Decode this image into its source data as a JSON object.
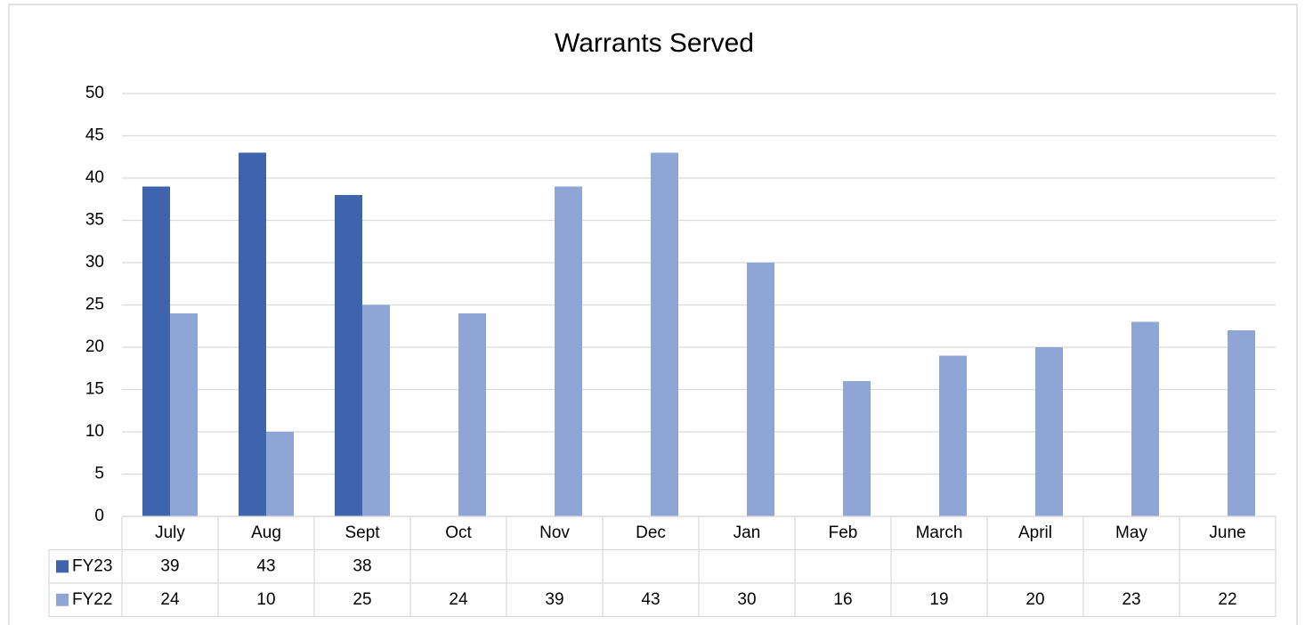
{
  "chart_data": {
    "type": "bar",
    "title": "Warrants Served",
    "categories": [
      "July",
      "Aug",
      "Sept",
      "Oct",
      "Nov",
      "Dec",
      "Jan",
      "Feb",
      "March",
      "April",
      "May",
      "June"
    ],
    "series": [
      {
        "name": "FY23",
        "color": "#3d64ad",
        "values": [
          39,
          43,
          38,
          null,
          null,
          null,
          null,
          null,
          null,
          null,
          null,
          null
        ]
      },
      {
        "name": "FY22",
        "color": "#8fa5d6",
        "values": [
          24,
          10,
          25,
          24,
          39,
          43,
          30,
          16,
          19,
          20,
          23,
          22
        ]
      }
    ],
    "ylim": [
      0,
      50
    ],
    "yticks": [
      0,
      5,
      10,
      15,
      20,
      25,
      30,
      35,
      40,
      45,
      50
    ],
    "grid": true,
    "data_table": true
  }
}
